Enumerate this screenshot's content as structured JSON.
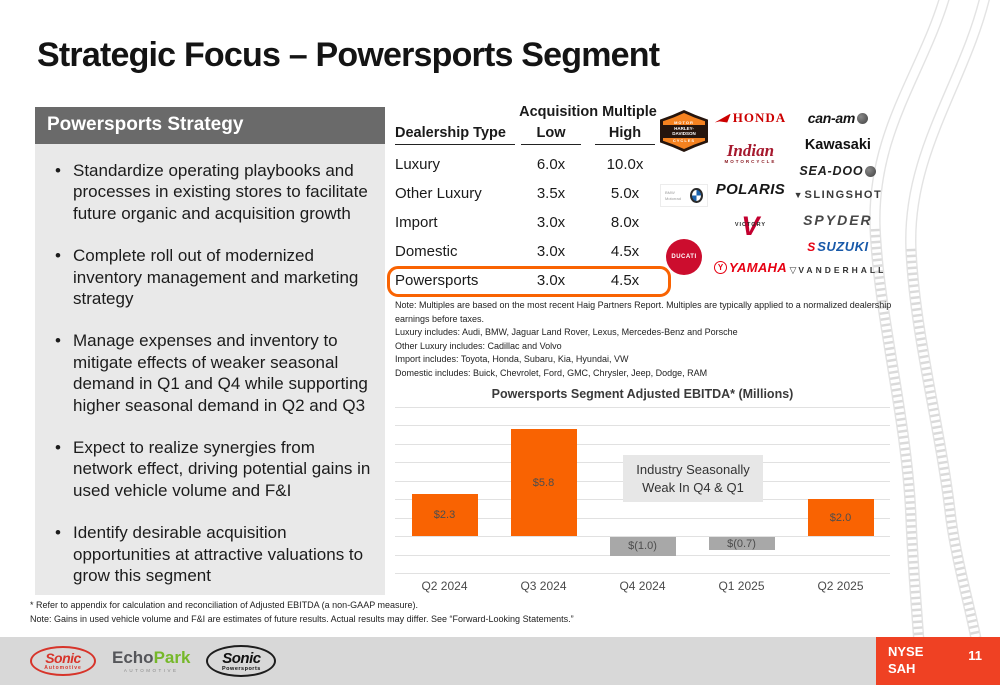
{
  "slide": {
    "title": "Strategic Focus – Powersports Segment",
    "page_number": "11",
    "ticker_line1": "NYSE",
    "ticker_line2": "SAH"
  },
  "strategy_panel": {
    "header": "Powersports Strategy",
    "bullets": [
      "Standardize operating playbooks and processes in existing stores to facilitate future organic and acquisition growth",
      "Complete roll out of modernized inventory management and marketing strategy",
      "Manage expenses and inventory to mitigate effects of weaker seasonal demand in Q1 and Q4 while supporting higher seasonal demand in Q2 and Q3",
      "Expect to realize synergies from network effect, driving potential gains in used vehicle volume and F&I",
      "Identify desirable acquisition opportunities at attractive valuations to grow this segment"
    ]
  },
  "acquisition_table": {
    "group_header": "Acquisition Multiple",
    "columns": [
      "Dealership Type",
      "Low",
      "High"
    ],
    "rows": [
      {
        "type": "Luxury",
        "low": "6.0x",
        "high": "10.0x",
        "highlighted": false
      },
      {
        "type": "Other Luxury",
        "low": "3.5x",
        "high": "5.0x",
        "highlighted": false
      },
      {
        "type": "Import",
        "low": "3.0x",
        "high": "8.0x",
        "highlighted": false
      },
      {
        "type": "Domestic",
        "low": "3.0x",
        "high": "4.5x",
        "highlighted": false
      },
      {
        "type": "Powersports",
        "low": "3.0x",
        "high": "4.5x",
        "highlighted": true
      }
    ],
    "highlight_color": "#F96302",
    "notes": [
      "Note: Multiples are based on the most recent Haig Partners Report. Multiples are typically applied to a normalized dealership earnings before taxes.",
      "Luxury includes: Audi, BMW, Jaguar Land Rover, Lexus, Mercedes-Benz and Porsche",
      "Other Luxury includes: Cadillac and Volvo",
      "Import includes: Toyota, Honda, Subaru, Kia, Hyundai, VW",
      "Domestic includes: Buick, Chevrolet, Ford, GMC, Chrysler, Jeep, Dodge, RAM"
    ]
  },
  "brand_logos": {
    "columns": [
      [
        {
          "name": "Harley-Davidson",
          "style": "hd",
          "lines": [
            "MOTOR",
            "HARLEY-DAVIDSON",
            "CYCLES"
          ]
        },
        {
          "name": "BMW Motorrad",
          "style": "bmw",
          "text": "BMW Motorrad"
        },
        {
          "name": "Ducati",
          "style": "ducati",
          "text": "DUCATI"
        }
      ],
      [
        {
          "name": "Honda",
          "style": "honda",
          "text": "HONDA"
        },
        {
          "name": "Indian Motorcycle",
          "style": "indian",
          "lines": [
            "Indian",
            "MOTORCYCLE"
          ]
        },
        {
          "name": "Polaris",
          "style": "polaris",
          "text": "POLARIS"
        },
        {
          "name": "Victory",
          "style": "victory",
          "lines": [
            "V",
            "VICTORY"
          ]
        },
        {
          "name": "Yamaha",
          "style": "yamaha",
          "mark": "Y",
          "text": "YAMAHA"
        }
      ],
      [
        {
          "name": "Can-Am",
          "style": "canam",
          "text": "can-am"
        },
        {
          "name": "Kawasaki",
          "style": "kawasaki",
          "text": "Kawasaki"
        },
        {
          "name": "Sea-Doo",
          "style": "seadoo",
          "text": "SEA-DOO"
        },
        {
          "name": "Slingshot",
          "style": "slingshot",
          "mark": "▼",
          "text": "SLINGSHOT"
        },
        {
          "name": "Spyder",
          "style": "spyder",
          "text": "SPYDER"
        },
        {
          "name": "Suzuki",
          "style": "suzuki",
          "mark": "S",
          "text": "SUZUKI"
        },
        {
          "name": "Vanderhall",
          "style": "vanderhall",
          "mark": "▽",
          "text": "VANDERHALL"
        }
      ]
    ]
  },
  "chart_data": {
    "type": "bar",
    "title": "Powersports Segment Adjusted EBITDA* (Millions)",
    "categories": [
      "Q2 2024",
      "Q3 2024",
      "Q4 2024",
      "Q1 2025",
      "Q2 2025"
    ],
    "values": [
      2.3,
      5.8,
      -1.0,
      -0.7,
      2.0
    ],
    "labels": [
      "$2.3",
      "$5.8",
      "$(1.0)",
      "$(0.7)",
      "$2.0"
    ],
    "positive_color": "#F96302",
    "negative_color": "#a8a8a8",
    "annotation": "Industry Seasonally Weak In Q4 & Q1",
    "xlabel": "",
    "ylabel": "",
    "ylim": [
      -2,
      7
    ],
    "grid": true,
    "legend": false
  },
  "footnotes": [
    "* Refer to appendix for calculation and reconciliation of Adjusted EBITDA (a non-GAAP measure).",
    "Note: Gains in used vehicle volume and F&I are estimates of future results. Actual results may differ. See “Forward-Looking Statements.”"
  ],
  "footer": {
    "sonic_automotive": {
      "word": "Sonic",
      "sub": "Automotive"
    },
    "echopark": {
      "part1": "Echo",
      "part2": "Park",
      "sub": "AUTOMOTIVE"
    },
    "sonic_powersports": {
      "word": "Sonic",
      "sub": "Powersports"
    }
  }
}
